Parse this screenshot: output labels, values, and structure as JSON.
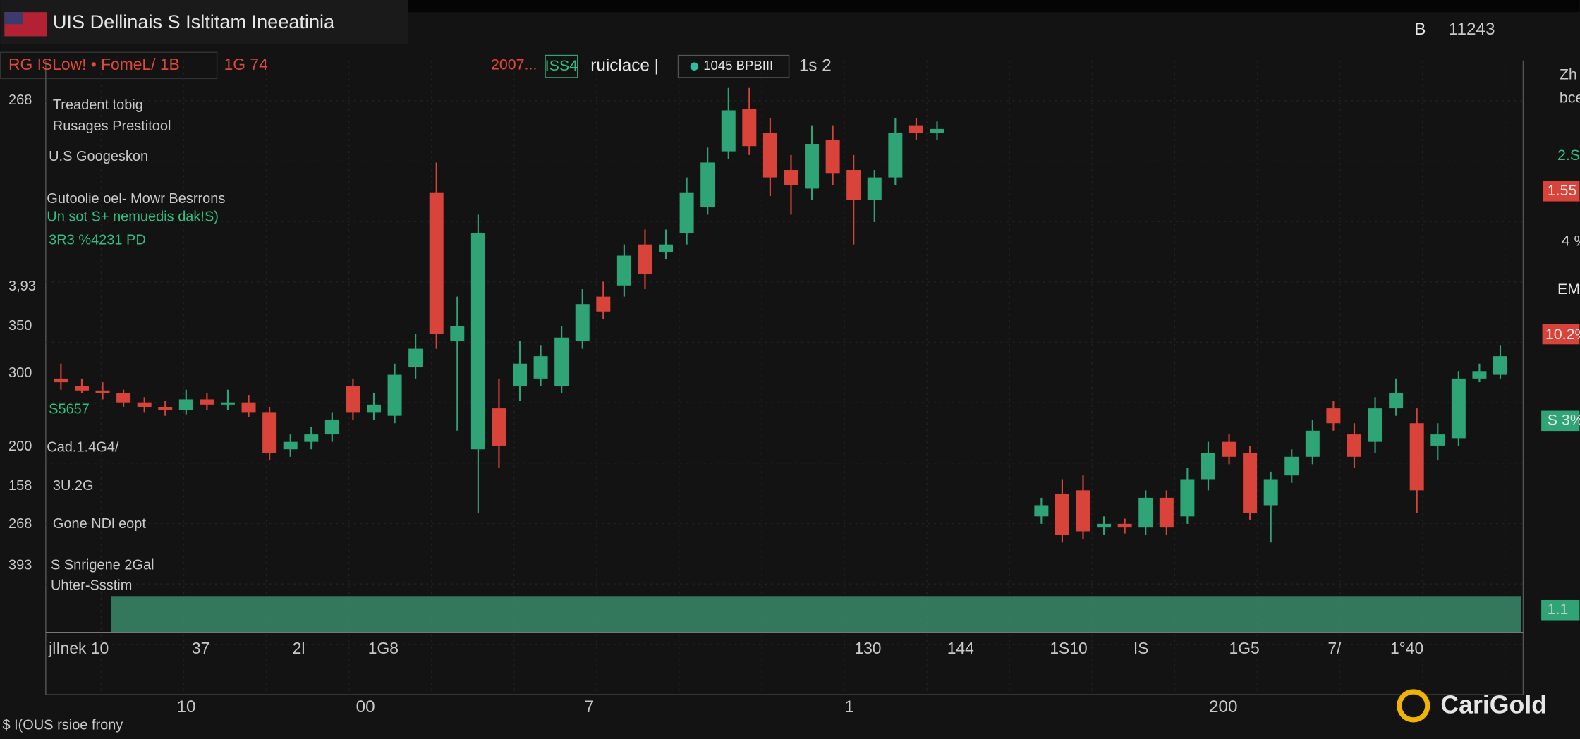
{
  "header": {
    "title": "UIS Dellinais S Isltitam Ineeatinia",
    "badge": "B",
    "clock": "11243"
  },
  "toolbar": {
    "symbol": "RG ISLow! • FomeL/ 1B",
    "change": "1G 74",
    "year": "2007...",
    "chip": "ISS4",
    "mode": "ruiclace |",
    "feed": "1045 BPBIII",
    "zoom": "1s 2"
  },
  "annotations": [
    "Treadent tobig",
    "Rusages Prestitool",
    "U.S Googeskon",
    "Gutoolie oel- Mowr Besrrons",
    "Un sot S+ nemuedis dak!S)",
    "3R3 %4231 PD",
    "S5657",
    "Cad.1.4G4/",
    "3U.2G",
    "Gone NDl eopt",
    "S Snrigene 2Gal",
    "Uhter-Ssstim"
  ],
  "price_labels": [
    "268",
    "3,93",
    "350",
    "300",
    "200",
    "158",
    "268",
    "393"
  ],
  "time_labels": [
    "jlInek 10",
    "37",
    "2l",
    "1G8",
    "130",
    "144",
    "1S10",
    "IS",
    "1G5",
    "7/",
    "1°40"
  ],
  "date_labels": [
    "10",
    "00",
    "7",
    "1",
    "200"
  ],
  "right_labels": [
    "Zh",
    "bce",
    "2.S",
    "1.55",
    "4 %",
    "EM",
    "10.2%",
    "S 3%",
    "1.1"
  ],
  "footer": "$ I(OUS  rsioe   frony",
  "brand": "CariGold",
  "chart_data": {
    "type": "candlestick",
    "x": [
      0,
      1,
      2,
      3,
      4,
      5,
      6,
      7,
      8,
      9,
      10,
      11,
      12,
      13,
      14,
      15,
      16,
      17,
      18,
      19,
      20,
      21,
      22,
      23,
      24,
      25,
      26,
      27,
      28,
      29,
      30,
      31,
      32,
      33,
      34,
      35,
      36,
      37,
      38,
      39,
      40,
      41,
      42,
      47,
      48,
      49,
      50,
      51,
      52,
      53,
      54,
      55,
      56,
      57,
      58,
      59,
      60,
      61,
      62,
      63,
      64,
      65,
      66,
      67,
      68,
      69
    ],
    "open": [
      300,
      290,
      284,
      280,
      268,
      262,
      258,
      272,
      265,
      268,
      255,
      205,
      215,
      225,
      290,
      255,
      250,
      315,
      550,
      350,
      205,
      260,
      290,
      300,
      290,
      350,
      410,
      425,
      480,
      470,
      495,
      530,
      605,
      662,
      630,
      580,
      555,
      620,
      580,
      540,
      570,
      640,
      630,
      115,
      145,
      150,
      100,
      105,
      100,
      140,
      115,
      165,
      215,
      200,
      130,
      170,
      195,
      260,
      225,
      215,
      260,
      240,
      210,
      220,
      300,
      305
    ],
    "high": [
      320,
      300,
      295,
      285,
      275,
      270,
      285,
      280,
      285,
      278,
      262,
      225,
      235,
      255,
      300,
      280,
      320,
      360,
      590,
      410,
      520,
      300,
      350,
      345,
      370,
      420,
      430,
      480,
      500,
      500,
      570,
      610,
      690,
      690,
      650,
      600,
      640,
      640,
      600,
      580,
      650,
      650,
      645,
      140,
      165,
      170,
      115,
      112,
      150,
      150,
      180,
      215,
      225,
      210,
      175,
      205,
      245,
      270,
      240,
      275,
      300,
      260,
      240,
      310,
      320,
      345
    ],
    "low": [
      285,
      280,
      272,
      262,
      255,
      250,
      252,
      258,
      258,
      248,
      190,
      195,
      205,
      215,
      245,
      245,
      240,
      300,
      340,
      230,
      120,
      180,
      270,
      290,
      280,
      340,
      380,
      410,
      420,
      460,
      480,
      520,
      595,
      600,
      545,
      520,
      540,
      560,
      480,
      510,
      560,
      620,
      620,
      105,
      80,
      85,
      90,
      92,
      90,
      90,
      105,
      150,
      185,
      110,
      80,
      160,
      185,
      230,
      180,
      200,
      250,
      120,
      190,
      210,
      295,
      300
    ],
    "close": [
      295,
      284,
      280,
      268,
      262,
      258,
      272,
      265,
      268,
      255,
      200,
      215,
      225,
      245,
      255,
      265,
      305,
      340,
      360,
      370,
      495,
      210,
      320,
      330,
      355,
      400,
      390,
      465,
      440,
      480,
      550,
      590,
      660,
      612,
      570,
      560,
      615,
      575,
      540,
      570,
      630,
      630,
      635,
      130,
      90,
      95,
      105,
      100,
      140,
      100,
      165,
      200,
      195,
      120,
      165,
      195,
      230,
      240,
      195,
      260,
      280,
      150,
      225,
      300,
      310,
      330
    ],
    "xlim": [
      -2.9,
      70
    ],
    "ylim": [
      0,
      700
    ],
    "up_color": "#2ea477",
    "down_color": "#d8443a"
  }
}
